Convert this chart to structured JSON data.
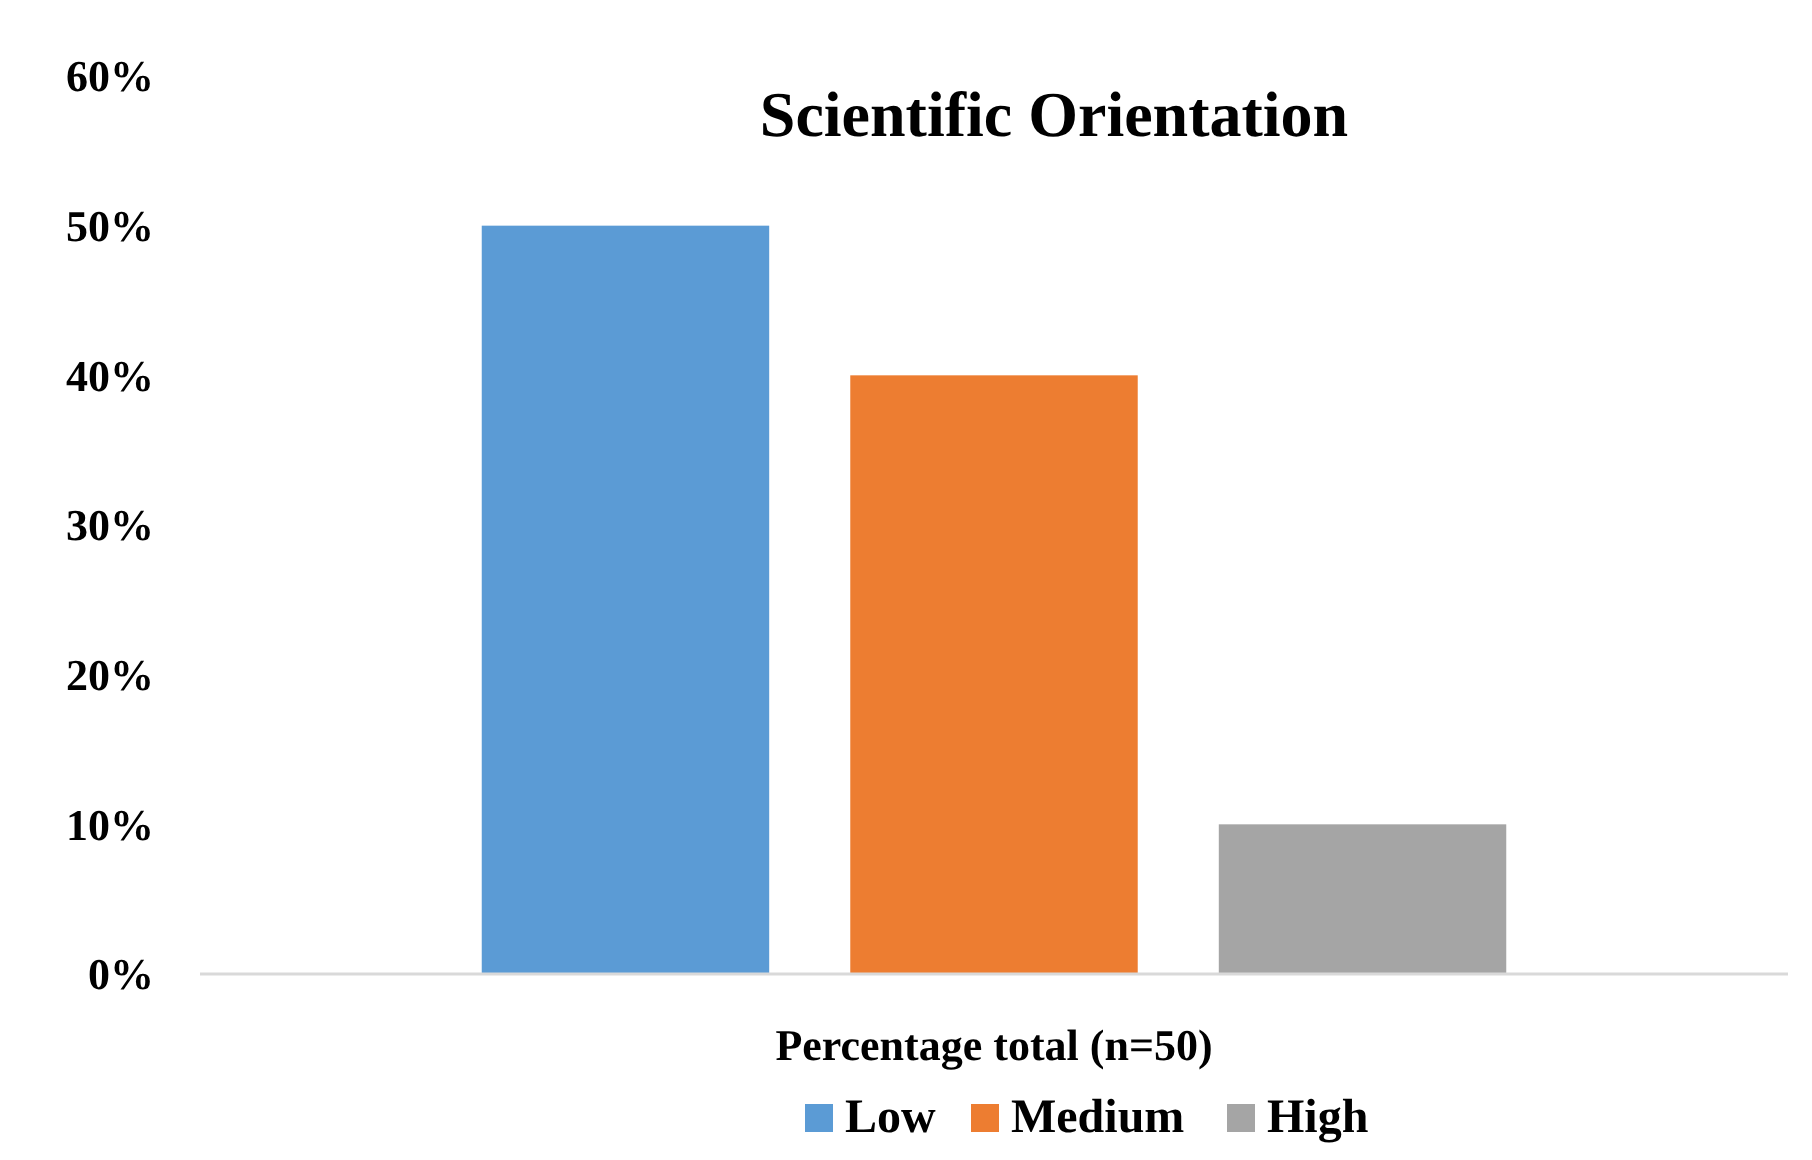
{
  "chart_data": {
    "type": "bar",
    "title": "Scientific Orientation",
    "categories": [
      "Percentage total (n=50)"
    ],
    "series": [
      {
        "name": "Low",
        "color": "#5b9bd5",
        "values": [
          50
        ]
      },
      {
        "name": "Medium",
        "color": "#ed7d31",
        "values": [
          40
        ]
      },
      {
        "name": "High",
        "color": "#a5a5a5",
        "values": [
          10
        ]
      }
    ],
    "ylim": [
      0,
      60
    ],
    "yticks": [
      {
        "value": 0,
        "label": "0%"
      },
      {
        "value": 10,
        "label": "10%"
      },
      {
        "value": 20,
        "label": "20%"
      },
      {
        "value": 30,
        "label": "30%"
      },
      {
        "value": 40,
        "label": "40%"
      },
      {
        "value": 50,
        "label": "50%"
      },
      {
        "value": 60,
        "label": "60%"
      }
    ],
    "grid": false,
    "legend": "bottom"
  }
}
